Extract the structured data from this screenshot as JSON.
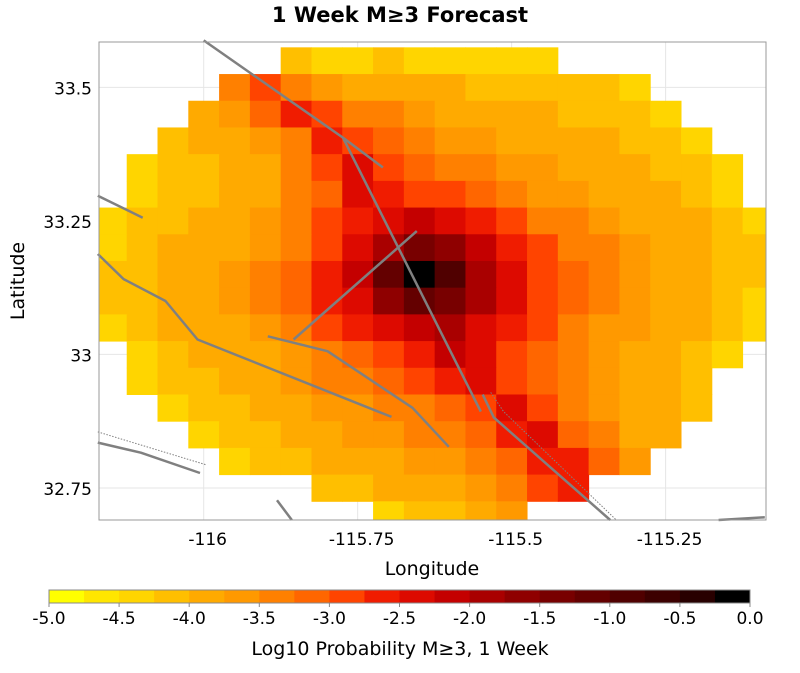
{
  "chart_data": {
    "type": "heatmap",
    "title": "1 Week M≥3 Forecast",
    "xlabel": "Longitude",
    "ylabel": "Latitude",
    "xlim": [
      -116.17,
      -115.087
    ],
    "ylim": [
      32.69,
      33.585
    ],
    "xticks": [
      -116,
      -115.75,
      -115.5,
      -115.25
    ],
    "xtick_labels": [
      "-116",
      "-115.75",
      "-115.5",
      "-115.25"
    ],
    "yticks": [
      33.5,
      33.25,
      33,
      32.75
    ],
    "ytick_labels": [
      "33.5",
      "33.25",
      "33",
      "32.75"
    ],
    "grid": true,
    "colorbar": {
      "label": "Log10 Probability M≥3, 1 Week",
      "range": [
        -5.0,
        0.0
      ],
      "ticks": [
        -5.0,
        -4.5,
        -4.0,
        -3.5,
        -3.0,
        -2.5,
        -2.0,
        -1.5,
        -1.0,
        -0.5,
        0.0
      ],
      "tick_labels": [
        "-5.0",
        "-4.5",
        "-4.0",
        "-3.5",
        "-3.0",
        "-2.5",
        "-2.0",
        "-1.5",
        "-1.0",
        "-0.5",
        "0.0"
      ],
      "colors": [
        "#ffff00",
        "#ffe600",
        "#ffd500",
        "#ffbf00",
        "#ffaa00",
        "#ff9900",
        "#ff8000",
        "#ff6600",
        "#ff4400",
        "#f01c00",
        "#dd0a00",
        "#c40000",
        "#a90000",
        "#8f0000",
        "#780000",
        "#640000",
        "#500000",
        "#3c0000",
        "#280000",
        "#000000"
      ]
    },
    "cell_size_deg": 0.05,
    "lon": [
      -116.15,
      -116.1,
      -116.05,
      -116.0,
      -115.95,
      -115.9,
      -115.85,
      -115.8,
      -115.75,
      -115.7,
      -115.65,
      -115.6,
      -115.55,
      -115.5,
      -115.45,
      -115.4,
      -115.35,
      -115.3,
      -115.25,
      -115.2,
      -115.15,
      -115.1
    ],
    "lat": [
      33.55,
      33.5,
      33.45,
      33.4,
      33.35,
      33.3,
      33.25,
      33.2,
      33.15,
      33.1,
      33.05,
      33.0,
      32.95,
      32.9,
      32.85,
      32.8,
      32.75,
      32.7
    ],
    "values": [
      [
        null,
        null,
        null,
        null,
        null,
        null,
        -4.2,
        -4.3,
        -4.3,
        -4.2,
        -4.3,
        -4.4,
        -4.3,
        -4.4,
        -4.4,
        null,
        null,
        null,
        null,
        null,
        null,
        null
      ],
      [
        null,
        null,
        null,
        null,
        -3.5,
        -3.0,
        -3.3,
        -3.7,
        -3.8,
        -3.9,
        -3.9,
        -4.0,
        -4.1,
        -4.1,
        -4.2,
        -4.1,
        -4.2,
        -4.3,
        null,
        null,
        null,
        null
      ],
      [
        null,
        null,
        null,
        -3.9,
        -3.7,
        -3.2,
        -2.7,
        -2.9,
        -3.3,
        -3.5,
        -3.7,
        -3.8,
        -3.9,
        -4.0,
        -4.0,
        -4.1,
        -4.1,
        -4.2,
        -4.3,
        null,
        null,
        null
      ],
      [
        null,
        null,
        -4.1,
        -4.0,
        -3.8,
        -3.6,
        -3.3,
        -2.6,
        -2.9,
        -3.2,
        -3.4,
        -3.6,
        -3.7,
        -3.8,
        -3.9,
        -4.0,
        -4.0,
        -4.1,
        -4.2,
        -4.3,
        null,
        null
      ],
      [
        null,
        -4.4,
        -4.2,
        -4.1,
        -3.9,
        -3.8,
        -3.5,
        -2.8,
        -2.4,
        -3.0,
        -3.2,
        -3.3,
        -3.4,
        -3.6,
        -3.7,
        -3.9,
        -4.0,
        -4.0,
        -4.1,
        -4.2,
        -4.3,
        null
      ],
      [
        null,
        -4.3,
        -4.2,
        -4.1,
        -4.0,
        -3.8,
        -3.5,
        -3.1,
        -2.4,
        -2.6,
        -2.9,
        -3.0,
        -3.2,
        -3.4,
        -3.6,
        -3.7,
        -3.9,
        -4.0,
        -4.0,
        -4.1,
        -4.3,
        null
      ],
      [
        -4.4,
        -4.2,
        -4.1,
        -4.0,
        -3.9,
        -3.7,
        -3.4,
        -3.0,
        -2.6,
        -2.3,
        -2.2,
        -2.4,
        -2.7,
        -3.0,
        -3.3,
        -3.5,
        -3.7,
        -3.8,
        -3.9,
        -4.0,
        -4.1,
        -4.3
      ],
      [
        -4.3,
        -4.1,
        -4.0,
        -3.9,
        -3.8,
        -3.6,
        -3.3,
        -2.8,
        -2.3,
        -1.8,
        -1.4,
        -1.7,
        -2.1,
        -2.6,
        -2.9,
        -3.3,
        -3.5,
        -3.7,
        -3.9,
        -4.0,
        -4.1,
        -4.2
      ],
      [
        -4.2,
        -4.1,
        -4.0,
        -3.9,
        -3.7,
        -3.5,
        -3.2,
        -2.7,
        -2.1,
        -1.1,
        -0.1,
        -0.9,
        -1.8,
        -2.4,
        -2.8,
        -3.2,
        -3.5,
        -3.7,
        -3.8,
        -4.0,
        -4.1,
        -4.2
      ],
      [
        -4.2,
        -4.1,
        -4.0,
        -3.9,
        -3.7,
        -3.5,
        -3.2,
        -2.7,
        -2.3,
        -1.6,
        -1.2,
        -1.5,
        -2.0,
        -2.5,
        -2.9,
        -3.2,
        -3.5,
        -3.7,
        -3.8,
        -4.0,
        -4.1,
        -4.3
      ],
      [
        -4.4,
        -4.1,
        -4.0,
        -3.9,
        -3.8,
        -3.6,
        -3.4,
        -3.0,
        -2.7,
        -2.4,
        -2.1,
        -1.9,
        -2.3,
        -2.7,
        -3.0,
        -3.3,
        -3.6,
        -3.7,
        -3.9,
        -4.0,
        -4.1,
        -4.4
      ],
      [
        null,
        -4.3,
        -4.1,
        -4.0,
        -3.9,
        -3.8,
        -3.6,
        -3.3,
        -3.1,
        -2.9,
        -2.6,
        -2.2,
        -2.3,
        -2.8,
        -3.1,
        -3.4,
        -3.6,
        -3.8,
        -3.9,
        -4.1,
        -4.3,
        null
      ],
      [
        null,
        -4.4,
        -4.2,
        -4.1,
        -4.0,
        -3.9,
        -3.7,
        -3.5,
        -3.3,
        -3.2,
        -3.0,
        -2.7,
        -2.3,
        -2.8,
        -3.2,
        -3.5,
        -3.7,
        -3.9,
        -4.0,
        -4.2,
        null,
        null
      ],
      [
        null,
        null,
        -4.3,
        -4.2,
        -4.1,
        -4.0,
        -3.9,
        -3.7,
        -3.6,
        -3.5,
        -3.4,
        -3.2,
        -2.8,
        -2.3,
        -2.9,
        -3.3,
        -3.6,
        -3.8,
        -4.0,
        -4.2,
        null,
        null
      ],
      [
        null,
        null,
        null,
        -4.3,
        -4.2,
        -4.1,
        -4.0,
        -3.9,
        -3.7,
        -3.6,
        -3.5,
        -3.4,
        -3.1,
        -2.6,
        -2.5,
        -3.1,
        -3.5,
        -3.8,
        -4.0,
        null,
        null,
        null
      ],
      [
        null,
        null,
        null,
        null,
        -4.3,
        -4.2,
        -4.1,
        -4.0,
        -3.9,
        -3.8,
        -3.7,
        -3.6,
        -3.4,
        -3.1,
        -2.6,
        -2.6,
        -3.2,
        -3.7,
        null,
        null,
        null,
        null
      ],
      [
        null,
        null,
        null,
        null,
        null,
        null,
        null,
        -4.2,
        -4.1,
        -4.0,
        -3.9,
        -3.8,
        -3.6,
        -3.3,
        -2.9,
        -2.6,
        null,
        null,
        null,
        null,
        null,
        null
      ],
      [
        null,
        null,
        null,
        null,
        null,
        null,
        null,
        null,
        null,
        -4.3,
        -4.2,
        -4.1,
        -3.9,
        -3.6,
        null,
        null,
        null,
        null,
        null,
        null,
        null,
        null
      ]
    ],
    "fault_color": "#808080",
    "faults": [
      {
        "style": "solid",
        "points": [
          [
            -116.0,
            33.588
          ],
          [
            -115.774,
            33.406
          ],
          [
            -115.709,
            33.35
          ]
        ]
      },
      {
        "style": "solid",
        "points": [
          [
            -115.774,
            33.406
          ],
          [
            -115.55,
            32.893
          ]
        ]
      },
      {
        "style": "solid",
        "points": [
          [
            -115.547,
            32.925
          ],
          [
            -115.529,
            32.882
          ],
          [
            -115.34,
            32.69
          ]
        ]
      },
      {
        "style": "dotted",
        "points": [
          [
            -115.534,
            32.929
          ],
          [
            -115.513,
            32.893
          ],
          [
            -115.33,
            32.69
          ]
        ]
      },
      {
        "style": "solid",
        "points": [
          [
            -115.654,
            33.231
          ],
          [
            -115.854,
            33.028
          ]
        ]
      },
      {
        "style": "solid",
        "points": [
          [
            -115.896,
            33.034
          ],
          [
            -115.799,
            33.006
          ],
          [
            -115.661,
            32.9
          ],
          [
            -115.602,
            32.827
          ]
        ]
      },
      {
        "style": "solid",
        "points": [
          [
            -116.172,
            33.188
          ],
          [
            -116.13,
            33.141
          ],
          [
            -116.062,
            33.1
          ],
          [
            -116.01,
            33.028
          ],
          [
            -115.695,
            32.883
          ]
        ]
      },
      {
        "style": "solid",
        "points": [
          [
            -116.172,
            33.297
          ],
          [
            -116.099,
            33.256
          ]
        ]
      },
      {
        "style": "solid",
        "points": [
          [
            -116.172,
            32.835
          ],
          [
            -116.102,
            32.816
          ],
          [
            -116.006,
            32.778
          ]
        ]
      },
      {
        "style": "dotted",
        "points": [
          [
            -116.172,
            32.855
          ],
          [
            -115.995,
            32.793
          ]
        ]
      },
      {
        "style": "solid",
        "points": [
          [
            -115.881,
            32.727
          ],
          [
            -115.857,
            32.69
          ]
        ]
      },
      {
        "style": "solid",
        "points": [
          [
            -115.164,
            32.69
          ],
          [
            -115.089,
            32.695
          ]
        ]
      }
    ]
  }
}
